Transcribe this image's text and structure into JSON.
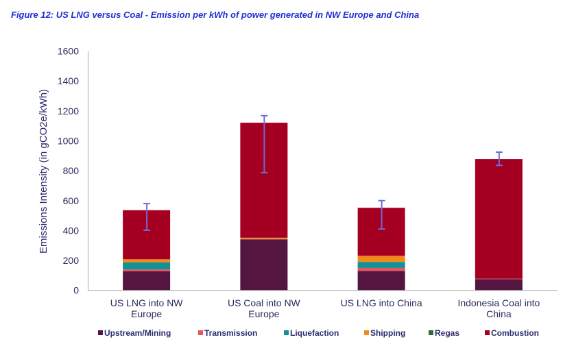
{
  "figure_title": "Figure 12: US LNG versus Coal - Emission per kWh of power generated in NW Europe and China",
  "chart_data": {
    "type": "bar",
    "stacked": true,
    "title": "Figure 12: US LNG versus Coal - Emission per kWh of power generated in NW Europe and China",
    "xlabel": "",
    "ylabel": "Emissions Intensity (in gCO2e/kWh)",
    "ylim": [
      0,
      1600
    ],
    "yticks": [
      0,
      200,
      400,
      600,
      800,
      1000,
      1200,
      1400,
      1600
    ],
    "grid": false,
    "legend_position": "bottom",
    "categories": [
      [
        "US LNG into NW",
        "Europe"
      ],
      [
        "US Coal into NW",
        "Europe"
      ],
      [
        "US LNG into China"
      ],
      [
        "Indonesia Coal into",
        "China"
      ]
    ],
    "series": [
      {
        "name": "Upstream/Mining",
        "color": "#541640",
        "values": [
          128,
          341,
          130,
          75
        ]
      },
      {
        "name": "Transmission",
        "color": "#E8555F",
        "values": [
          12,
          2,
          20,
          3
        ]
      },
      {
        "name": "Liquefaction",
        "color": "#129196",
        "values": [
          47,
          0,
          40,
          0
        ]
      },
      {
        "name": "Shipping",
        "color": "#F28A1A",
        "values": [
          21,
          9,
          41,
          0
        ]
      },
      {
        "name": "Regas",
        "color": "#2E6B3A",
        "values": [
          0,
          0,
          0,
          0
        ]
      },
      {
        "name": "Combustion",
        "color": "#A50021",
        "values": [
          328,
          769,
          321,
          800
        ]
      }
    ],
    "totals": [
      536,
      1121,
      552,
      878
    ],
    "error_bars": {
      "color": "#6B6BDB",
      "low": [
        402,
        787,
        410,
        836
      ],
      "high": [
        580,
        1168,
        600,
        924
      ]
    }
  }
}
